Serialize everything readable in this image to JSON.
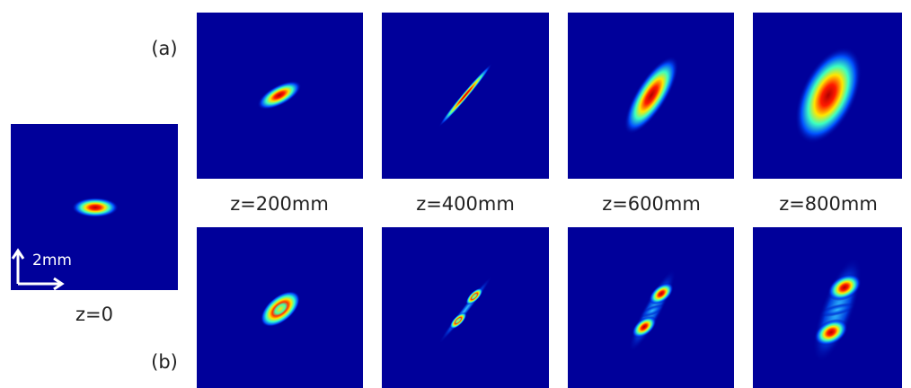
{
  "labels": {
    "a": "(a)",
    "b": "(b)"
  },
  "reference": {
    "label": "z=0",
    "scale_bar": "2mm"
  },
  "columns": [
    {
      "label": "z=200mm"
    },
    {
      "label": "z=400mm"
    },
    {
      "label": "z=600mm"
    },
    {
      "label": "z=800mm"
    }
  ]
}
